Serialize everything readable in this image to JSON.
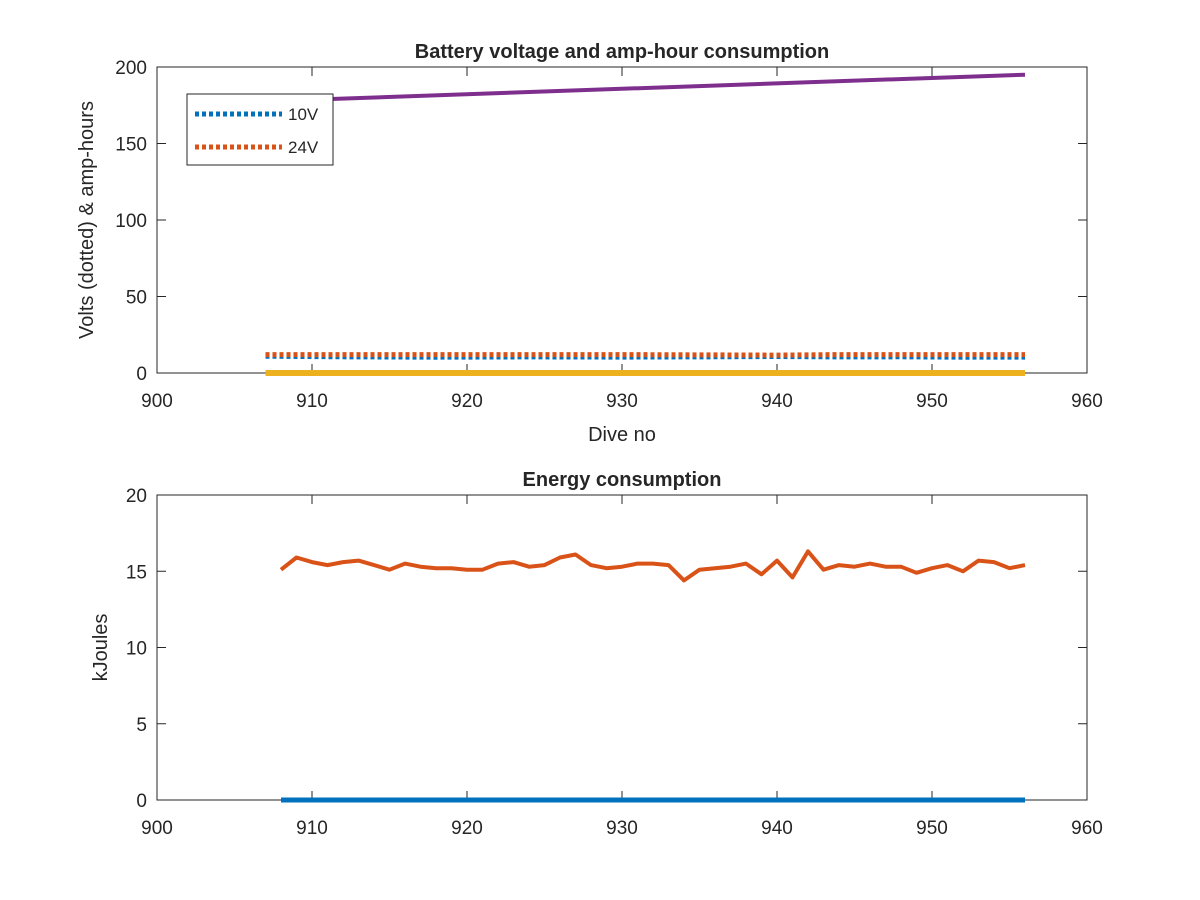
{
  "chart_data": [
    {
      "type": "line",
      "title": "Battery voltage and amp-hour consumption",
      "xlabel": "Dive no",
      "ylabel": "Volts (dotted) & amp-hours",
      "xlim": [
        900,
        960
      ],
      "ylim": [
        0,
        200
      ],
      "xticks": [
        "900",
        "910",
        "920",
        "930",
        "940",
        "950",
        "960"
      ],
      "yticks": [
        "0",
        "50",
        "100",
        "150",
        "200"
      ],
      "grid": false,
      "legend_position": "top-left",
      "series": [
        {
          "name": "10V",
          "style": "dotted",
          "color": "#0072bd",
          "x": [
            907,
            912,
            918,
            924,
            930,
            936,
            940,
            944,
            948,
            952,
            956
          ],
          "values": [
            11,
            10.6,
            10.3,
            10.5,
            10.4,
            10.6,
            10.8,
            10.5,
            10.6,
            10.3,
            10.4
          ]
        },
        {
          "name": "24V",
          "style": "dotted",
          "color": "#d95319",
          "x": [
            907,
            912,
            918,
            924,
            930,
            936,
            940,
            944,
            948,
            952,
            956
          ],
          "values": [
            12,
            12,
            12,
            12,
            12,
            11.8,
            11.7,
            12,
            12,
            12,
            12
          ]
        },
        {
          "style": "solid",
          "color": "#edb120",
          "x": [
            907,
            956
          ],
          "values": [
            0,
            0
          ]
        },
        {
          "style": "solid",
          "color": "#7e2f8e",
          "x": [
            911,
            956
          ],
          "values": [
            179,
            195
          ]
        }
      ]
    },
    {
      "type": "line",
      "title": "Energy consumption",
      "ylabel": "kJoules",
      "xlim": [
        900,
        960
      ],
      "ylim": [
        0,
        20
      ],
      "xticks": [
        "900",
        "910",
        "920",
        "930",
        "940",
        "950",
        "960"
      ],
      "yticks": [
        "0",
        "5",
        "10",
        "15",
        "20"
      ],
      "grid": false,
      "series": [
        {
          "style": "solid",
          "color": "#0072bd",
          "x": [
            908,
            956
          ],
          "values": [
            0,
            0
          ]
        },
        {
          "style": "solid",
          "color": "#d95319",
          "x": [
            908,
            909,
            910,
            911,
            912,
            913,
            914,
            915,
            916,
            917,
            918,
            919,
            920,
            921,
            922,
            923,
            924,
            925,
            926,
            927,
            928,
            929,
            930,
            931,
            932,
            933,
            934,
            935,
            936,
            937,
            938,
            939,
            940,
            941,
            942,
            943,
            944,
            945,
            946,
            947,
            948,
            949,
            950,
            951,
            952,
            953,
            954,
            955,
            956
          ],
          "values": [
            15.1,
            15.9,
            15.6,
            15.4,
            15.6,
            15.7,
            15.4,
            15.1,
            15.5,
            15.3,
            15.2,
            15.2,
            15.1,
            15.1,
            15.5,
            15.6,
            15.3,
            15.4,
            15.9,
            16.1,
            15.4,
            15.2,
            15.3,
            15.5,
            15.5,
            15.4,
            14.4,
            15.1,
            15.2,
            15.3,
            15.5,
            14.8,
            15.7,
            14.6,
            16.3,
            15.1,
            15.4,
            15.3,
            15.5,
            15.3,
            15.3,
            14.9,
            15.2,
            15.4,
            15.0,
            15.7,
            15.6,
            15.2,
            15.4
          ]
        }
      ]
    }
  ]
}
